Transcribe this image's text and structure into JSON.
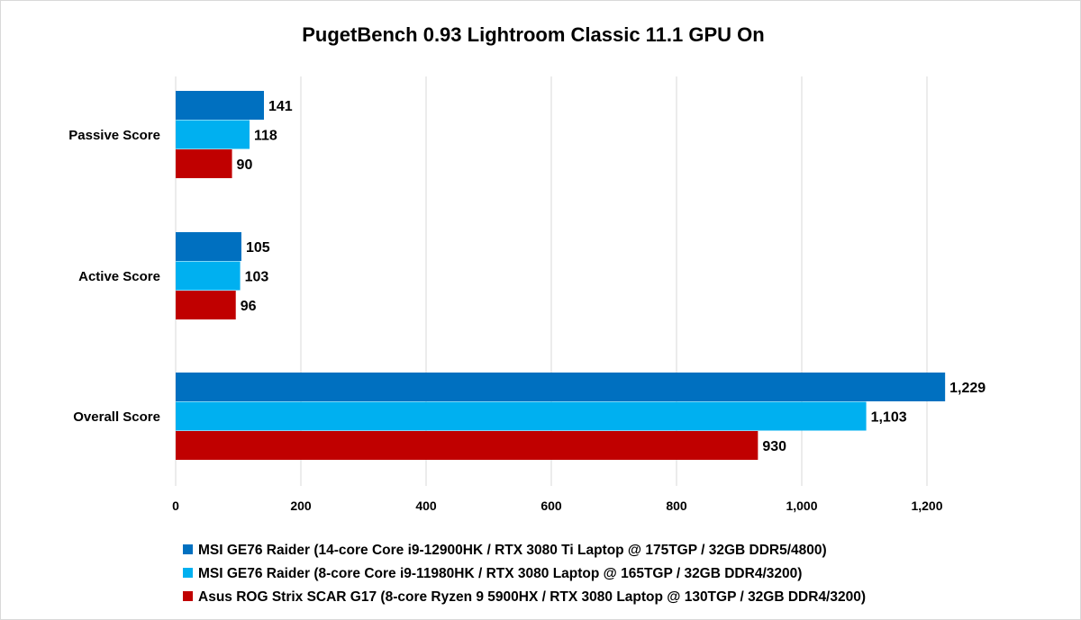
{
  "chart_data": {
    "type": "bar",
    "orientation": "horizontal",
    "title": "PugetBench 0.93 Lightroom Classic 11.1 GPU On",
    "categories": [
      "Passive Score",
      "Active Score",
      "Overall Score"
    ],
    "series": [
      {
        "name": "MSI GE76 Raider (14-core Core i9-12900HK / RTX 3080 Ti Laptop @ 175TGP / 32GB DDR5/4800)",
        "color": "#0070C0",
        "values": [
          141,
          105,
          1229
        ]
      },
      {
        "name": "MSI GE76 Raider (8-core Core i9-11980HK / RTX 3080 Laptop @ 165TGP / 32GB DDR4/3200)",
        "color": "#00B0F0",
        "values": [
          118,
          103,
          1103
        ]
      },
      {
        "name": "Asus ROG Strix SCAR G17 (8-core Ryzen 9 5900HX / RTX 3080 Laptop @ 130TGP / 32GB DDR4/3200)",
        "color": "#C00000",
        "values": [
          90,
          96,
          930
        ]
      }
    ],
    "xlim": [
      0,
      1200
    ],
    "xticks": [
      0,
      200,
      400,
      600,
      800,
      1000,
      1200
    ],
    "xtick_labels": [
      "0",
      "200",
      "400",
      "600",
      "800",
      "1,000",
      "1,200"
    ],
    "grid": true,
    "legend": "bottom",
    "xlabel": "",
    "ylabel": ""
  }
}
